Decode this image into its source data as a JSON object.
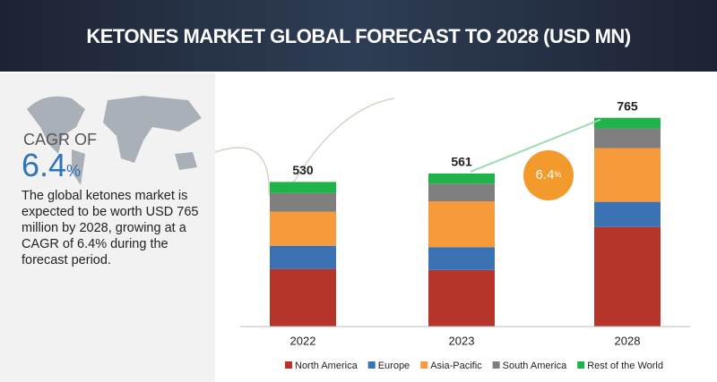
{
  "chart_data": {
    "type": "stacked_bar",
    "title": "KETONES MARKET GLOBAL FORECAST TO 2028 (USD MN)",
    "categories": [
      "2022",
      "2023",
      "2028"
    ],
    "totals": [
      530,
      561,
      765
    ],
    "series": [
      {
        "name": "North America",
        "color": "#b5352b",
        "values": [
          211,
          207,
          365
        ]
      },
      {
        "name": "Europe",
        "color": "#3a72b4",
        "values": [
          85,
          84,
          92
        ]
      },
      {
        "name": "Asia-Pacific",
        "color": "#f79a3c",
        "values": [
          125,
          168,
          197
        ]
      },
      {
        "name": "South America",
        "color": "#7f7f7f",
        "values": [
          68,
          65,
          72
        ]
      },
      {
        "name": "Rest of the World",
        "color": "#1fb34a",
        "values": [
          41,
          37,
          39
        ]
      }
    ],
    "ylim": [
      0,
      800
    ],
    "cagr": {
      "label": "CAGR OF",
      "value": "6.4",
      "unit": "%"
    },
    "description": "The global ketones market is expected to be worth USD 765 million by 2028, growing at a CAGR of 6.4% during the forecast period."
  }
}
